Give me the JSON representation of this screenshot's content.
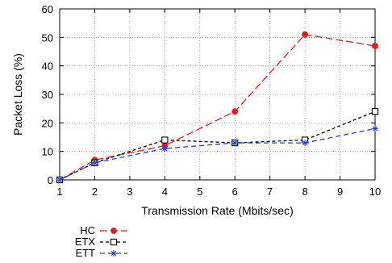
{
  "chart_data": {
    "type": "line",
    "xlabel": "Transmission Rate (Mbits/sec)",
    "ylabel": "Packet Loss (%)",
    "xlim": [
      1,
      10
    ],
    "ylim": [
      0,
      60
    ],
    "xticks": [
      "1",
      "2",
      "3",
      "4",
      "5",
      "6",
      "7",
      "8",
      "9",
      "10"
    ],
    "yticks": [
      "0",
      "10",
      "20",
      "30",
      "40",
      "50",
      "60"
    ],
    "grid": true,
    "legend_position": "bottom-left",
    "series": [
      {
        "name": "HC",
        "color": "#e8191c",
        "marker": "filled-circle",
        "dash": "long-dash",
        "x": [
          1,
          2,
          4,
          6,
          8,
          10
        ],
        "y": [
          0,
          7,
          12,
          24,
          51,
          47
        ]
      },
      {
        "name": "ETX",
        "color": "#000000",
        "marker": "open-square",
        "dash": "short-dash",
        "x": [
          1,
          2,
          4,
          6,
          8,
          10
        ],
        "y": [
          0,
          6,
          14,
          13,
          14,
          24
        ]
      },
      {
        "name": "ETT",
        "color": "#1f3fe6",
        "marker": "asterisk",
        "dash": "dash",
        "x": [
          1,
          2,
          4,
          6,
          8,
          10
        ],
        "y": [
          0,
          6,
          11,
          13,
          13,
          18
        ]
      }
    ]
  }
}
